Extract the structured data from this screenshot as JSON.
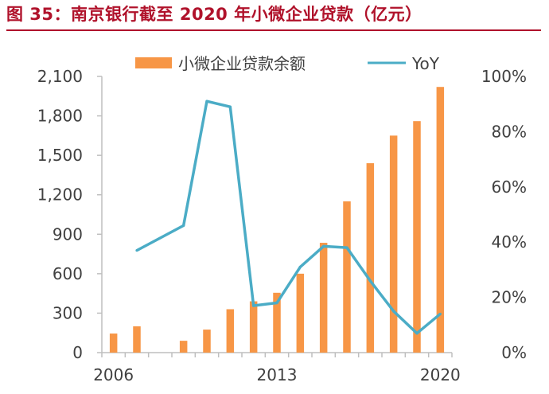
{
  "figure_title": "图 35：南京银行截至 2020 年小微企业贷款（亿元）",
  "colors": {
    "bar": "#f79646",
    "line": "#4bacc6",
    "title": "#b0122b",
    "axis": "#bfbfbf",
    "text": "#404040"
  },
  "chart_data": {
    "type": "bar",
    "title": "",
    "xlabel": "",
    "ylabel": "",
    "legend_position": "top",
    "x": [
      2006,
      2007,
      2008,
      2009,
      2010,
      2011,
      2012,
      2013,
      2014,
      2015,
      2016,
      2017,
      2018,
      2019,
      2020
    ],
    "x_tick_labels": [
      "2006",
      "2013",
      "2020"
    ],
    "series": [
      {
        "name": "小微企业贷款余额",
        "type": "bar",
        "axis": "left",
        "values": [
          145,
          200,
          null,
          90,
          175,
          330,
          390,
          455,
          600,
          835,
          1150,
          1440,
          1650,
          1760,
          2020
        ]
      },
      {
        "name": "YoY",
        "type": "line",
        "axis": "right",
        "values": [
          null,
          0.37,
          null,
          0.46,
          0.91,
          0.89,
          0.17,
          0.18,
          0.31,
          0.385,
          0.38,
          0.26,
          0.15,
          0.07,
          0.14
        ]
      }
    ],
    "left_axis": {
      "ylim": [
        0,
        2100
      ],
      "ticks": [
        0,
        300,
        600,
        900,
        1200,
        1500,
        1800,
        2100
      ],
      "tick_labels": [
        "0",
        "300",
        "600",
        "900",
        "1,200",
        "1,500",
        "1,800",
        "2,100"
      ]
    },
    "right_axis": {
      "ylim": [
        0,
        1
      ],
      "ticks": [
        0,
        0.2,
        0.4,
        0.6,
        0.8,
        1.0
      ],
      "tick_labels": [
        "0%",
        "20%",
        "40%",
        "60%",
        "80%",
        "100%"
      ]
    },
    "grid": false
  }
}
